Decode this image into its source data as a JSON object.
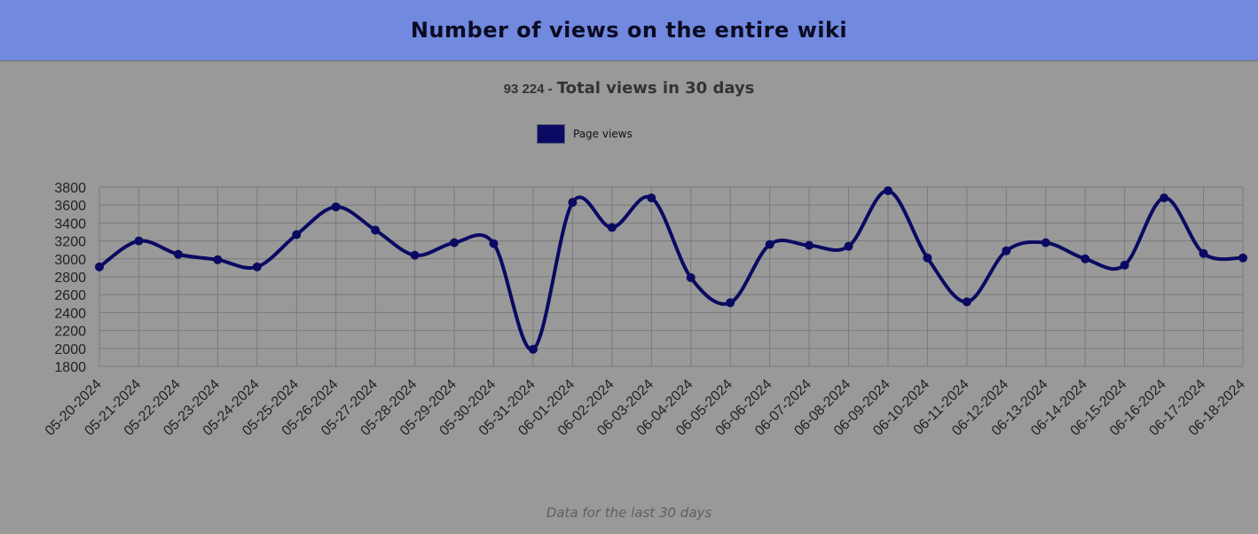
{
  "header": {
    "title": "Number of views on the entire wiki"
  },
  "summary": {
    "total": "93 224 -",
    "label": "Total views in 30 days"
  },
  "footer": {
    "note": "Data for the last 30 days"
  },
  "colors": {
    "header_bg": "#7189de",
    "page_bg": "#999999",
    "series_line": "#0a0a63",
    "grid": "#7a7a7a"
  },
  "chart_data": {
    "type": "line",
    "smooth": true,
    "markers": true,
    "grid": true,
    "legend_position": "top-center",
    "ylim": [
      1800,
      3800
    ],
    "yticks": [
      1800,
      2000,
      2200,
      2400,
      2600,
      2800,
      3000,
      3200,
      3400,
      3600,
      3800
    ],
    "categories": [
      "05-20-2024",
      "05-21-2024",
      "05-22-2024",
      "05-23-2024",
      "05-24-2024",
      "05-25-2024",
      "05-26-2024",
      "05-27-2024",
      "05-28-2024",
      "05-29-2024",
      "05-30-2024",
      "05-31-2024",
      "06-01-2024",
      "06-02-2024",
      "06-03-2024",
      "06-04-2024",
      "06-05-2024",
      "06-06-2024",
      "06-07-2024",
      "06-08-2024",
      "06-09-2024",
      "06-10-2024",
      "06-11-2024",
      "06-12-2024",
      "06-13-2024",
      "06-14-2024",
      "06-15-2024",
      "06-16-2024",
      "06-17-2024",
      "06-18-2024"
    ],
    "series": [
      {
        "name": "Page views",
        "values": [
          2910,
          3200,
          3050,
          2990,
          2910,
          3270,
          3580,
          3320,
          3040,
          3180,
          3170,
          1990,
          3630,
          3350,
          3680,
          2790,
          2510,
          3160,
          3150,
          3140,
          3760,
          3010,
          2520,
          3090,
          3180,
          3000,
          2930,
          3680,
          3060,
          3010
        ]
      }
    ]
  }
}
